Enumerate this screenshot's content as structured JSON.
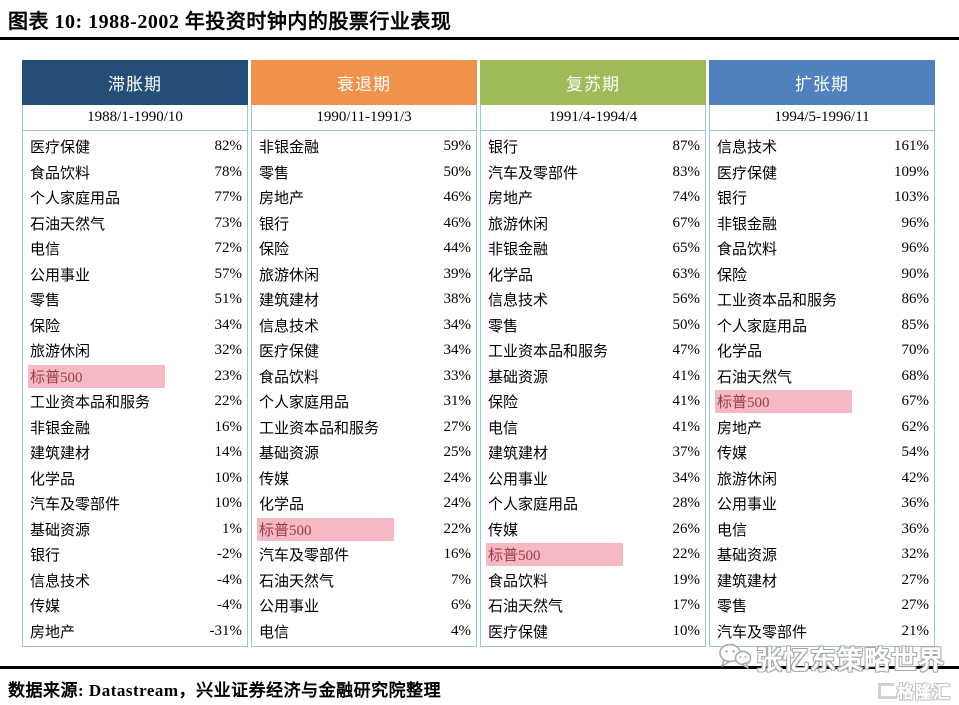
{
  "page": {
    "title": "图表 10:  1988-2002 年投资时钟内的股票行业表现",
    "source": "数据来源:  Datastream，兴业证券经济与金融研究院整理",
    "watermark": "张忆东策略世界",
    "brand": "格隆汇"
  },
  "table": {
    "border_color": "#9dc3e6",
    "highlight_bg": "#f5b9c3",
    "highlight_text": "#9e3b44",
    "columns": [
      {
        "phase": "滞胀期",
        "period": "1988/1-1990/10",
        "color": "#254e77",
        "rows": [
          {
            "label": "医疗保健",
            "value": "82%"
          },
          {
            "label": "食品饮料",
            "value": "78%"
          },
          {
            "label": "个人家庭用品",
            "value": "77%"
          },
          {
            "label": "石油天然气",
            "value": "73%"
          },
          {
            "label": "电信",
            "value": "72%"
          },
          {
            "label": "公用事业",
            "value": "57%"
          },
          {
            "label": "零售",
            "value": "51%"
          },
          {
            "label": "保险",
            "value": "34%"
          },
          {
            "label": "旅游休闲",
            "value": "32%"
          },
          {
            "label": "标普500",
            "value": "23%",
            "highlight": true
          },
          {
            "label": "工业资本品和服务",
            "value": "22%"
          },
          {
            "label": "非银金融",
            "value": "16%"
          },
          {
            "label": "建筑建材",
            "value": "14%"
          },
          {
            "label": "化学品",
            "value": "10%"
          },
          {
            "label": "汽车及零部件",
            "value": "10%"
          },
          {
            "label": "基础资源",
            "value": "1%"
          },
          {
            "label": "银行",
            "value": "-2%"
          },
          {
            "label": "信息技术",
            "value": "-4%"
          },
          {
            "label": "传媒",
            "value": "-4%"
          },
          {
            "label": "房地产",
            "value": "-31%"
          }
        ]
      },
      {
        "phase": "衰退期",
        "period": "1990/11-1991/3",
        "color": "#f0924c",
        "rows": [
          {
            "label": "非银金融",
            "value": "59%"
          },
          {
            "label": "零售",
            "value": "50%"
          },
          {
            "label": "房地产",
            "value": "46%"
          },
          {
            "label": "银行",
            "value": "46%"
          },
          {
            "label": "保险",
            "value": "44%"
          },
          {
            "label": "旅游休闲",
            "value": "39%"
          },
          {
            "label": "建筑建材",
            "value": "38%"
          },
          {
            "label": "信息技术",
            "value": "34%"
          },
          {
            "label": "医疗保健",
            "value": "34%"
          },
          {
            "label": "食品饮料",
            "value": "33%"
          },
          {
            "label": "个人家庭用品",
            "value": "31%"
          },
          {
            "label": "工业资本品和服务",
            "value": "27%"
          },
          {
            "label": "基础资源",
            "value": "25%"
          },
          {
            "label": "传媒",
            "value": "24%"
          },
          {
            "label": "化学品",
            "value": "24%"
          },
          {
            "label": "标普500",
            "value": "22%",
            "highlight": true
          },
          {
            "label": "汽车及零部件",
            "value": "16%"
          },
          {
            "label": "石油天然气",
            "value": "7%"
          },
          {
            "label": "公用事业",
            "value": "6%"
          },
          {
            "label": "电信",
            "value": "4%"
          }
        ]
      },
      {
        "phase": "复苏期",
        "period": "1991/4-1994/4",
        "color": "#9fbb59",
        "rows": [
          {
            "label": "银行",
            "value": "87%"
          },
          {
            "label": "汽车及零部件",
            "value": "83%"
          },
          {
            "label": "房地产",
            "value": "74%"
          },
          {
            "label": "旅游休闲",
            "value": "67%"
          },
          {
            "label": "非银金融",
            "value": "65%"
          },
          {
            "label": "化学品",
            "value": "63%"
          },
          {
            "label": "信息技术",
            "value": "56%"
          },
          {
            "label": "零售",
            "value": "50%"
          },
          {
            "label": "工业资本品和服务",
            "value": "47%"
          },
          {
            "label": "基础资源",
            "value": "41%"
          },
          {
            "label": "保险",
            "value": "41%"
          },
          {
            "label": "电信",
            "value": "41%"
          },
          {
            "label": "建筑建材",
            "value": "37%"
          },
          {
            "label": "公用事业",
            "value": "34%"
          },
          {
            "label": "个人家庭用品",
            "value": "28%"
          },
          {
            "label": "传媒",
            "value": "26%"
          },
          {
            "label": "标普500",
            "value": "22%",
            "highlight": true
          },
          {
            "label": "食品饮料",
            "value": "19%"
          },
          {
            "label": "石油天然气",
            "value": "17%"
          },
          {
            "label": "医疗保健",
            "value": "10%"
          }
        ]
      },
      {
        "phase": "扩张期",
        "period": "1994/5-1996/11",
        "color": "#4e81bd",
        "rows": [
          {
            "label": "信息技术",
            "value": "161%"
          },
          {
            "label": "医疗保健",
            "value": "109%"
          },
          {
            "label": "银行",
            "value": "103%"
          },
          {
            "label": "非银金融",
            "value": "96%"
          },
          {
            "label": "食品饮料",
            "value": "96%"
          },
          {
            "label": "保险",
            "value": "90%"
          },
          {
            "label": "工业资本品和服务",
            "value": "86%"
          },
          {
            "label": "个人家庭用品",
            "value": "85%"
          },
          {
            "label": "化学品",
            "value": "70%"
          },
          {
            "label": "石油天然气",
            "value": "68%"
          },
          {
            "label": "标普500",
            "value": "67%",
            "highlight": true
          },
          {
            "label": "房地产",
            "value": "62%"
          },
          {
            "label": "传媒",
            "value": "54%"
          },
          {
            "label": "旅游休闲",
            "value": "42%"
          },
          {
            "label": "公用事业",
            "value": "36%"
          },
          {
            "label": "电信",
            "value": "36%"
          },
          {
            "label": "基础资源",
            "value": "32%"
          },
          {
            "label": "建筑建材",
            "value": "27%"
          },
          {
            "label": "零售",
            "value": "27%"
          },
          {
            "label": "汽车及零部件",
            "value": "21%"
          }
        ]
      }
    ]
  }
}
